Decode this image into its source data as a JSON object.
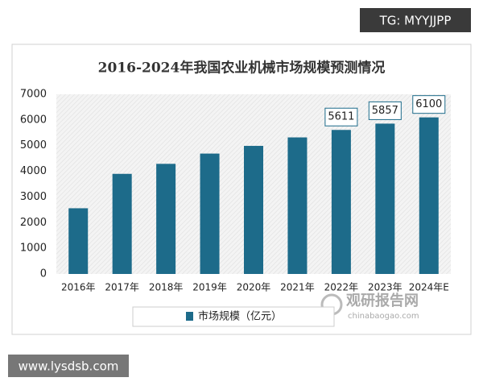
{
  "chart_data": {
    "type": "bar",
    "title": "2016-2024年我国农业机械市场规模预测情况",
    "categories": [
      "2016年",
      "2017年",
      "2018年",
      "2019年",
      "2020年",
      "2021年",
      "2022年",
      "2023年",
      "2024年E"
    ],
    "series": [
      {
        "name": "市场规模（亿元）",
        "color": "#1d6b8a",
        "values": [
          2560,
          3900,
          4290,
          4690,
          4990,
          5320,
          5611,
          5857,
          6100
        ],
        "value_labels": [
          null,
          null,
          null,
          null,
          null,
          null,
          "5611",
          "5857",
          "6100"
        ]
      }
    ],
    "ylim": [
      0,
      7000
    ],
    "yticks": [
      0,
      1000,
      2000,
      3000,
      4000,
      5000,
      6000,
      7000
    ],
    "grid": false
  },
  "watermarks": {
    "top_right": "TG: MYYJJPP",
    "bottom_left": "www.lysdsb.com",
    "logo_title": "观研报告网",
    "logo_url": "chinabaogao.com"
  }
}
